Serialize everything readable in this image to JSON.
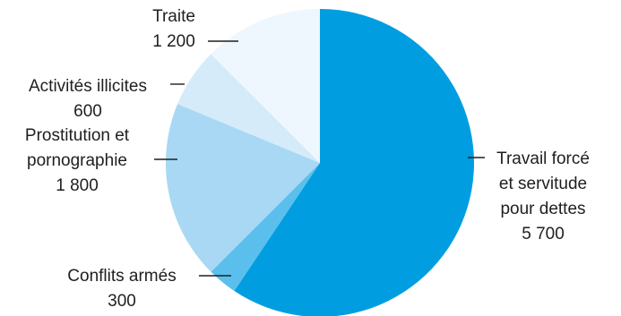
{
  "chart_data": {
    "type": "pie",
    "title": "",
    "slices": [
      {
        "name_lines": [
          "Travail forcé",
          "et servitude",
          "pour dettes"
        ],
        "value_label": "5 700",
        "value": 5700,
        "color": "#009ee0"
      },
      {
        "name_lines": [
          "Conflits armés"
        ],
        "value_label": "300",
        "value": 300,
        "color": "#5bbfee"
      },
      {
        "name_lines": [
          "Prostitution et",
          "pornographie"
        ],
        "value_label": "1 800",
        "value": 1800,
        "color": "#a8d8f4"
      },
      {
        "name_lines": [
          "Activités illicites"
        ],
        "value_label": "600",
        "value": 600,
        "color": "#d5ebf9"
      },
      {
        "name_lines": [
          "Traite"
        ],
        "value_label": "1 200",
        "value": 1200,
        "color": "#eef7fd"
      }
    ]
  }
}
